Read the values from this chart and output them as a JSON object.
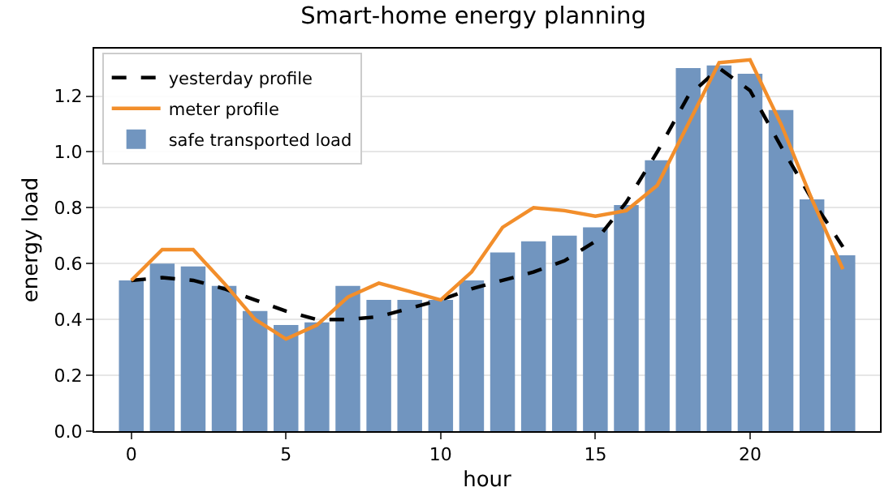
{
  "chart_data": {
    "type": "bar",
    "title": "Smart-home energy planning",
    "xlabel": "hour",
    "ylabel": "energy load",
    "x": [
      0,
      1,
      2,
      3,
      4,
      5,
      6,
      7,
      8,
      9,
      10,
      11,
      12,
      13,
      14,
      15,
      16,
      17,
      18,
      19,
      20,
      21,
      22,
      23
    ],
    "series": [
      {
        "name": "safe transported load",
        "color": "#7195bf",
        "values": [
          0.54,
          0.6,
          0.59,
          0.52,
          0.43,
          0.38,
          0.39,
          0.52,
          0.47,
          0.47,
          0.47,
          0.54,
          0.64,
          0.68,
          0.7,
          0.73,
          0.81,
          0.97,
          1.3,
          1.31,
          1.28,
          1.15,
          0.83,
          0.63
        ]
      },
      {
        "name": "yesterday profile",
        "type": "line",
        "color": "#000000",
        "line_style": "dashed",
        "values": [
          0.54,
          0.55,
          0.54,
          0.51,
          0.47,
          0.43,
          0.4,
          0.4,
          0.41,
          0.44,
          0.47,
          0.51,
          0.54,
          0.57,
          0.61,
          0.68,
          0.82,
          1.0,
          1.2,
          1.3,
          1.22,
          1.02,
          0.83,
          0.66
        ]
      },
      {
        "name": "meter profile",
        "type": "line",
        "color": "#f28e2b",
        "line_style": "solid",
        "values": [
          0.54,
          0.65,
          0.65,
          0.53,
          0.4,
          0.33,
          0.38,
          0.48,
          0.53,
          0.5,
          0.47,
          0.57,
          0.73,
          0.8,
          0.79,
          0.77,
          0.79,
          0.88,
          1.1,
          1.32,
          1.33,
          1.1,
          0.83,
          0.58
        ]
      }
    ],
    "xlim": [
      -1.2,
      24.2
    ],
    "xticks": [
      0,
      5,
      10,
      15,
      20
    ],
    "ylim": [
      0,
      1.37
    ],
    "yticks": [
      {
        "value": 0,
        "label": "0.0"
      },
      0.2,
      0.4,
      0.6,
      0.8,
      {
        "value": 1,
        "label": "1.0"
      },
      1.2
    ],
    "grid": "y",
    "legend": "top left",
    "marker": "none"
  }
}
